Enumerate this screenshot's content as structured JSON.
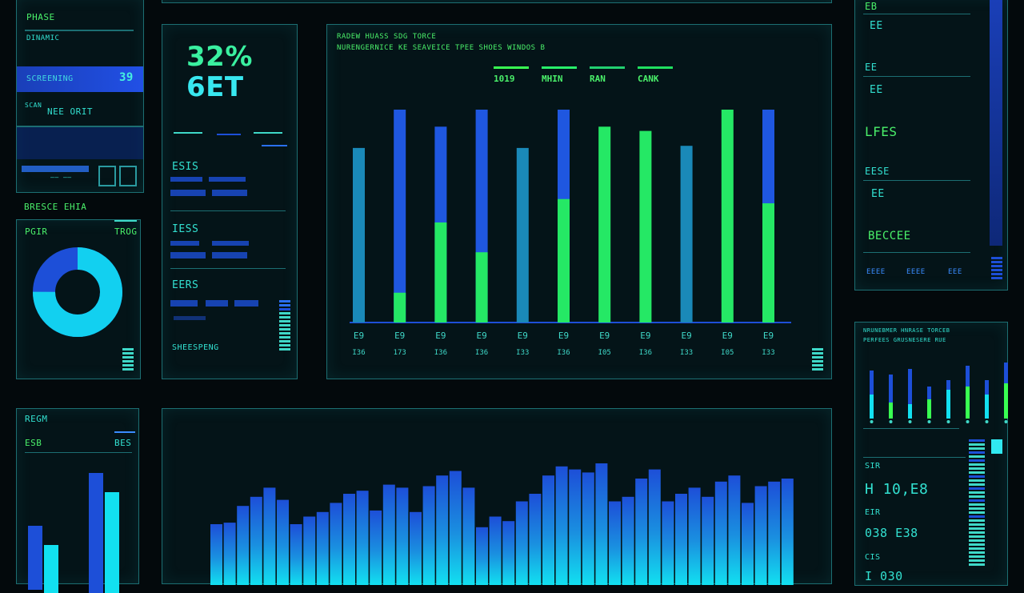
{
  "left_top": {
    "title": "PHASE",
    "subtitle": "DINAMIC",
    "selected_label": "SCREENING",
    "selected_value": "39",
    "note_label": "SCAN",
    "note_value": "NEE ORIT",
    "footer": "—— ——"
  },
  "kpi": {
    "percent": "32%",
    "label": "6ET",
    "row1": "ESIS",
    "row2": "IESS",
    "row3": "EERS",
    "row4": "SHEESPENG"
  },
  "donut_panel": {
    "title": "BRESCE EHIA",
    "label_left": "PGIR",
    "label_right": "TROG",
    "ratio": 0.75
  },
  "main_chart": {
    "header1": "RADEW HUASS SDG TORCE",
    "header2": "NURENGERNICE KE SEAVEICE TPEE SHOES WINDOS B",
    "legend": [
      "1019",
      "MHIN",
      "RAN",
      "CANK"
    ],
    "legend_colors": [
      "#39ff52",
      "#28f06a",
      "#22d070",
      "#20e060"
    ]
  },
  "chart_data": {
    "type": "bar",
    "categories": [
      "E9",
      "E9",
      "E9",
      "E9",
      "E9",
      "E9",
      "E9",
      "E9",
      "E9",
      "E9",
      "E9"
    ],
    "sublabels": [
      "I36",
      "173",
      "I36",
      "I36",
      "I33",
      "I36",
      "I05",
      "I36",
      "I33",
      "I05",
      "I33"
    ],
    "ylim": [
      0,
      100
    ],
    "series": [
      {
        "values": [
          82,
          100,
          92,
          100,
          82,
          100,
          0,
          0,
          83,
          0,
          100
        ]
      },
      {
        "values": [
          0,
          14,
          47,
          33,
          0,
          58,
          92,
          90,
          0,
          100,
          56
        ]
      }
    ],
    "colors": [
      "#1f57e0",
      "#25e865",
      "#1a89b8"
    ]
  },
  "right_top": {
    "rows": [
      "EB",
      "EE",
      "LFES",
      "EESE",
      "BECCEE"
    ],
    "values": [
      "EE",
      "EE",
      "",
      "EE",
      ""
    ],
    "footer": [
      "EEEE",
      "EEEE",
      "EEE"
    ]
  },
  "mini_chart": {
    "title": "NRUNEBMER HNRASE TORCEB",
    "subtitle": "PERFEES GRUSNESERE RUE"
  },
  "right_bottom": {
    "label1": "SIR",
    "value1": "H 10,E8",
    "label2": "EIR",
    "value2": "038 E38",
    "label3": "CIS",
    "value3": "I 030"
  },
  "bottom_left": {
    "title": "REGM",
    "label_left": "ESB",
    "label_right": "BES"
  },
  "bottom_chart": {
    "values": [
      40,
      41,
      52,
      58,
      64,
      56,
      40,
      45,
      48,
      54,
      60,
      62,
      49,
      66,
      64,
      48,
      65,
      72,
      75,
      64,
      38,
      45,
      42,
      55,
      60,
      72,
      78,
      76,
      74,
      80,
      55,
      58,
      70,
      76,
      55,
      60,
      64,
      58,
      68,
      72,
      54,
      65,
      68,
      70
    ]
  }
}
